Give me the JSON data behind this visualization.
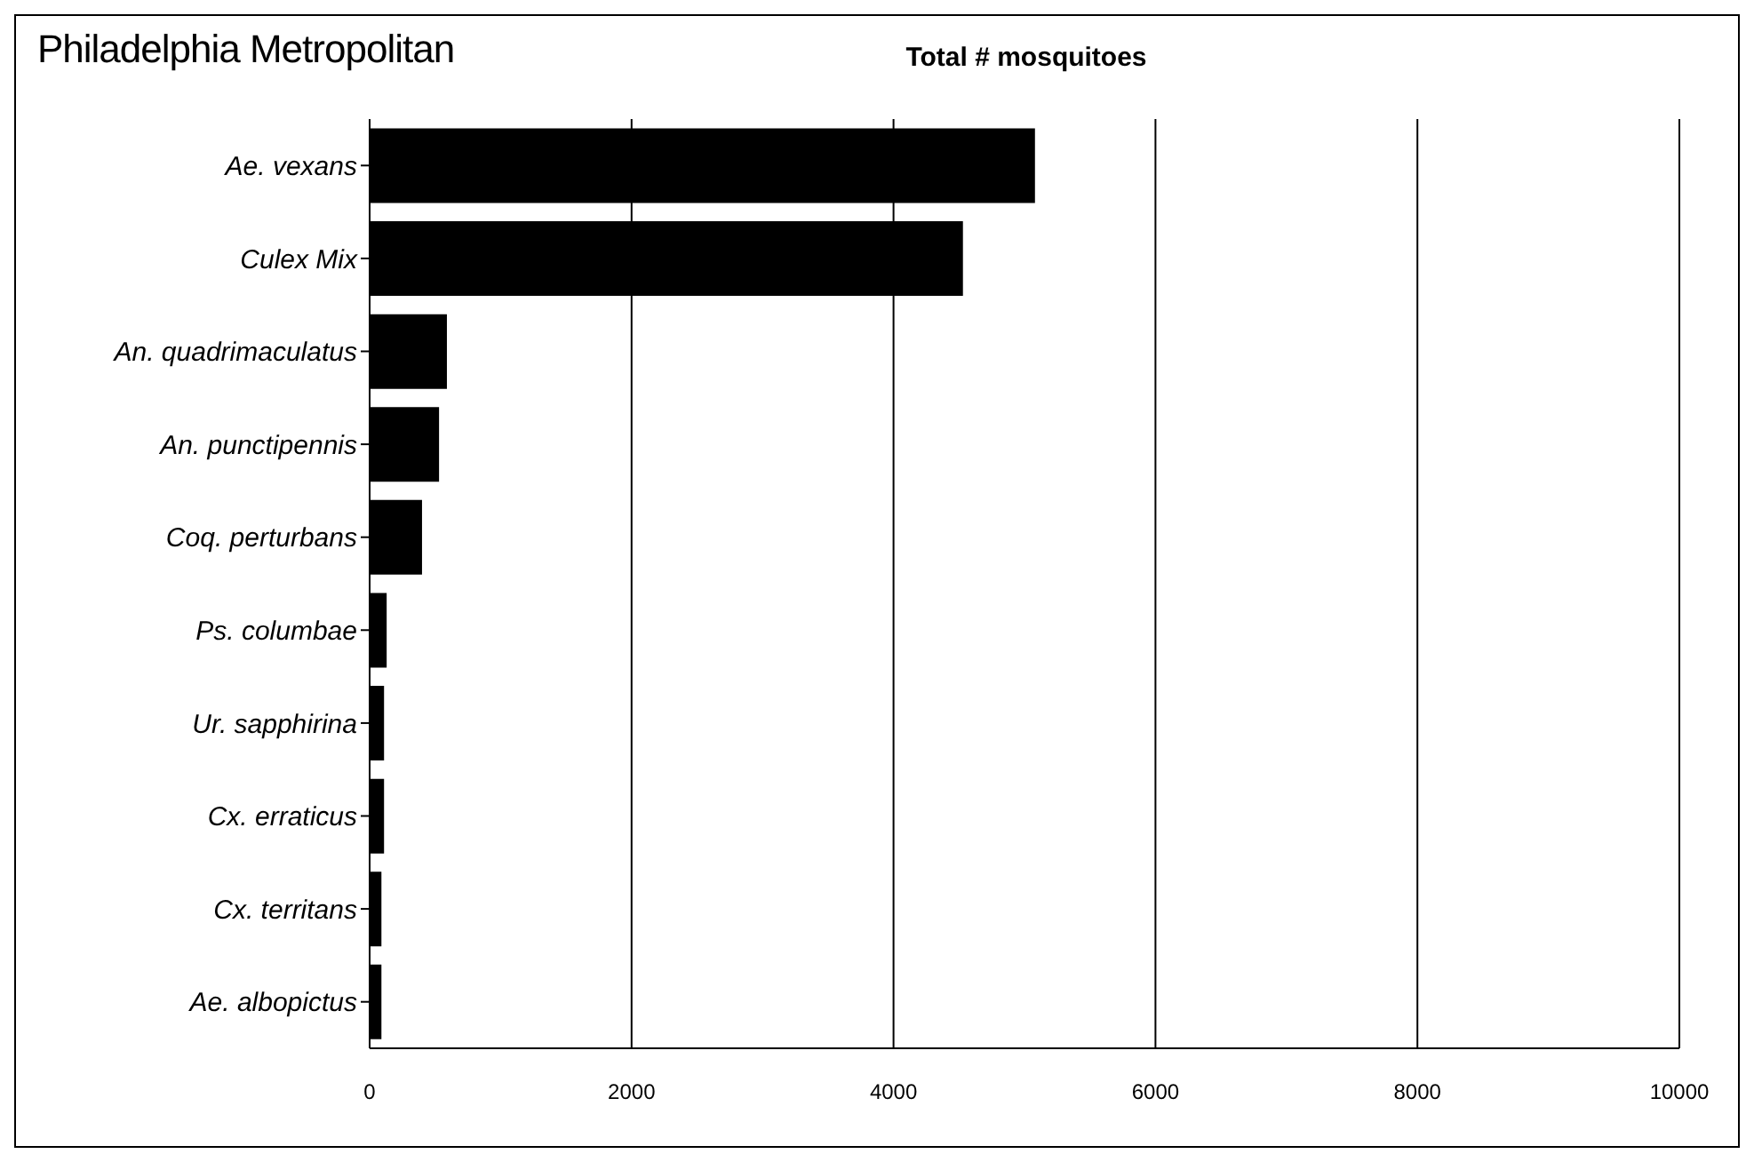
{
  "chart_data": {
    "type": "bar",
    "orientation": "horizontal",
    "title": "Philadelphia Metropolitan",
    "xlabel": "Total # mosquitoes",
    "categories": [
      "Ae. vexans",
      "Culex Mix",
      "An. quadrimaculatus",
      "An. punctipennis",
      "Coq. perturbans",
      "Ps. columbae",
      "Ur. sapphirina",
      "Cx. erraticus",
      "Cx. territans",
      "Ae. albopictus"
    ],
    "values": [
      5080,
      4530,
      590,
      530,
      400,
      130,
      110,
      110,
      90,
      90
    ],
    "color": "#000000",
    "xlim": [
      0,
      10000
    ],
    "xticks": [
      0,
      2000,
      4000,
      6000,
      8000,
      10000
    ],
    "grid": "x"
  }
}
